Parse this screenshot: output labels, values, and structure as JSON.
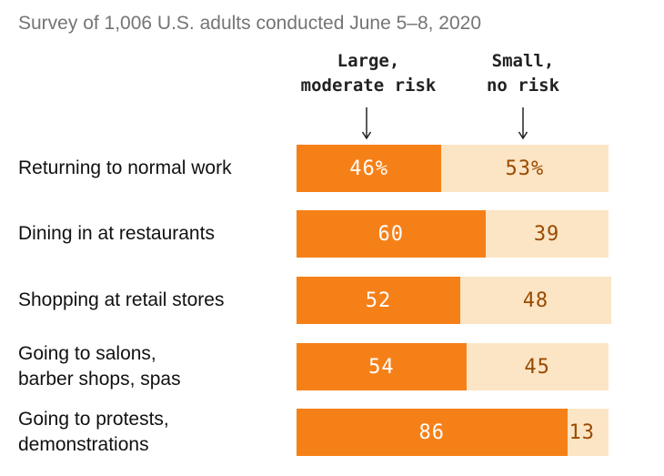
{
  "subtitle": "Survey of 1,006 U.S. adults conducted June 5–8, 2020",
  "columns": {
    "large": "Large,\nmoderate risk",
    "small": "Small,\nno risk"
  },
  "colors": {
    "large": "#f68018",
    "small": "#fce5c5"
  },
  "chart_data": {
    "type": "bar",
    "orientation": "horizontal",
    "stacked": true,
    "subtitle": "Survey of 1,006 U.S. adults conducted June 5–8, 2020",
    "categories": [
      "Returning to normal work",
      "Dining in at restaurants",
      "Shopping at retail stores",
      "Going to salons,\nbarber shops, spas",
      "Going to protests,\ndemonstrations"
    ],
    "series": [
      {
        "name": "Large, moderate risk",
        "values": [
          46,
          60,
          52,
          54,
          86
        ],
        "labels": [
          "46%",
          "60",
          "52",
          "54",
          "86"
        ]
      },
      {
        "name": "Small, no risk",
        "values": [
          53,
          39,
          48,
          45,
          13
        ],
        "labels": [
          "53%",
          "39",
          "48",
          "45",
          "13"
        ]
      }
    ],
    "xlim": [
      0,
      100
    ],
    "grid": false,
    "legend": "column headers above bars"
  }
}
